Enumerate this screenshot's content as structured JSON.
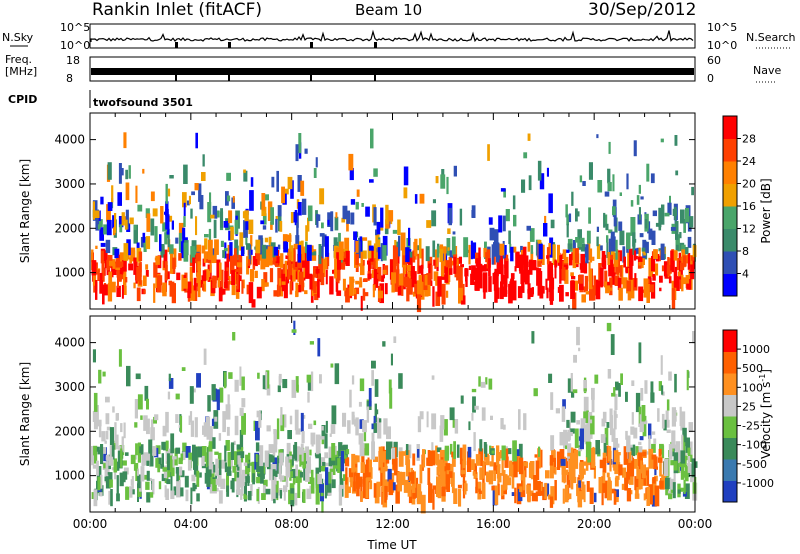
{
  "header": {
    "station": "Rankin Inlet (fitACF)",
    "beam": "Beam 10",
    "date": "30/Sep/2012"
  },
  "nsky_panel": {
    "left_label": "N.Sky",
    "right_label": "N.Search",
    "left_ticks": [
      "10^5",
      "10^0"
    ],
    "right_ticks": [
      "10^5",
      "10^0"
    ]
  },
  "freq_panel": {
    "left_label_1": "Freq.",
    "left_label_2": "[MHz]",
    "right_label": "Nave",
    "left_ticks": [
      "18",
      "8"
    ],
    "right_ticks": [
      "60",
      "0"
    ]
  },
  "cpid_panel": {
    "label": "CPID",
    "program": "twofsound 3501"
  },
  "chart_data": [
    {
      "type": "heatmap",
      "title": "",
      "xlabel": "",
      "ylabel": "Slant Range [km]",
      "xlim": [
        "00:00",
        "24:00"
      ],
      "ylim": [
        180,
        4600
      ],
      "yticks": [
        "1000",
        "2000",
        "3000",
        "4000"
      ],
      "colorbar_label": "Power [dB]",
      "colorbar_ticks": [
        "28",
        "24",
        "20",
        "16",
        "12",
        "8",
        "4"
      ],
      "colorbar_range": [
        0,
        30
      ],
      "colorbar_colors": [
        "#0000ff",
        "#2f4fb4",
        "#3a8a6a",
        "#4aa56a",
        "#f0a000",
        "#ff8000",
        "#ff4000",
        "#ff0000"
      ]
    },
    {
      "type": "heatmap",
      "title": "",
      "xlabel": "Time UT",
      "ylabel": "Slant Range [km]",
      "xlim": [
        "00:00",
        "24:00"
      ],
      "ylim": [
        180,
        4600
      ],
      "xticks": [
        "00:00",
        "04:00",
        "08:00",
        "12:00",
        "16:00",
        "20:00",
        "00:00"
      ],
      "yticks": [
        "1000",
        "2000",
        "3000",
        "4000"
      ],
      "colorbar_label": "Velocity [m s",
      "colorbar_label_sup": "-1",
      "colorbar_label_end": "]",
      "colorbar_ticks": [
        "1000",
        "500",
        "100",
        "25",
        "-25",
        "-100",
        "-500",
        "-1000"
      ],
      "colorbar_colors": [
        "#2040c0",
        "#3a7ab0",
        "#3a8a5a",
        "#6ac040",
        "#c8c8c8",
        "#ff9020",
        "#ff6000",
        "#ff0000"
      ]
    }
  ]
}
